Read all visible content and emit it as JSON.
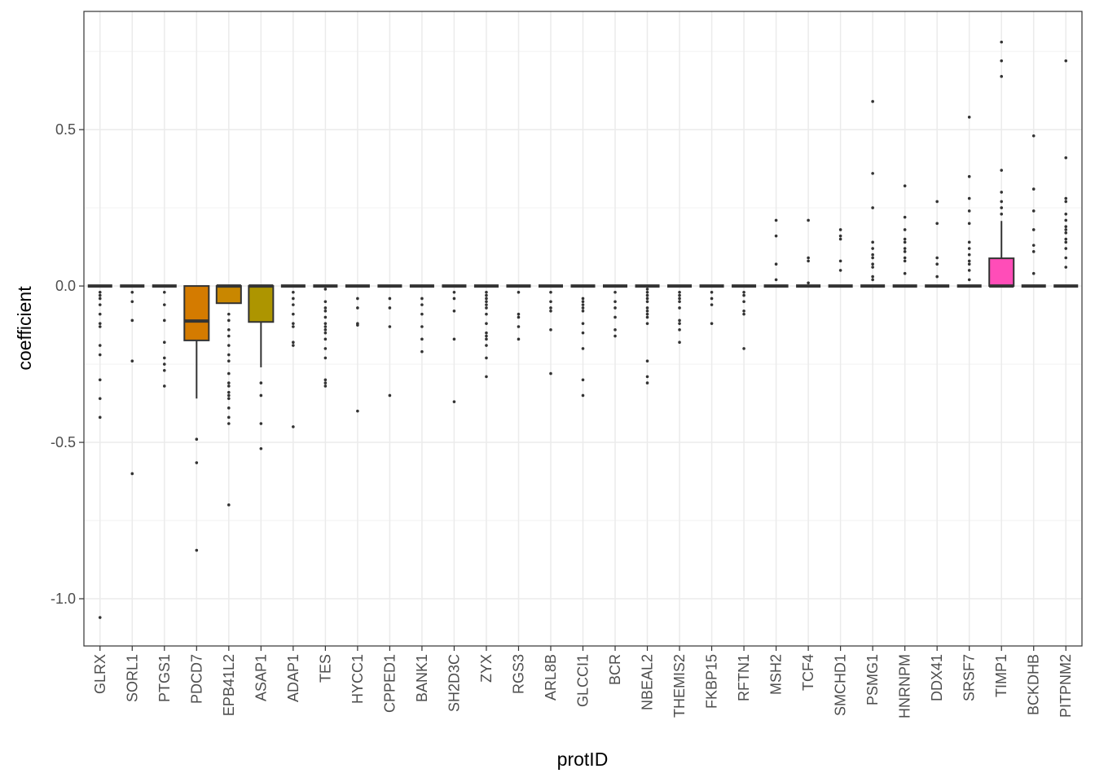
{
  "chart_data": {
    "type": "box",
    "x_label": "protID",
    "y_label": "coefficient",
    "categories": [
      "GLRX",
      "SORL1",
      "PTGS1",
      "PDCD7",
      "EPB41L2",
      "ASAP1",
      "ADAP1",
      "TES",
      "HYCC1",
      "CPPED1",
      "BANK1",
      "SH2D3C",
      "ZYX",
      "RGS3",
      "ARL8B",
      "GLCCI1",
      "BCR",
      "NBEAL2",
      "THEMIS2",
      "FKBP15",
      "RFTN1",
      "MSH2",
      "TCF4",
      "SMCHD1",
      "PSMG1",
      "HNRNPM",
      "DDX41",
      "SRSF7",
      "TIMP1",
      "BCKDHB",
      "PITPNM2"
    ],
    "ylim": [
      -1.151,
      0.878
    ],
    "yticks": [
      {
        "value": -1,
        "label": "-1.0"
      },
      -0.5,
      {
        "value": 0,
        "label": "0.0"
      },
      0.5
    ],
    "grid": true,
    "boxes": [
      {
        "color": "#F8766D",
        "whislo": 0,
        "q1": 0,
        "median": 0,
        "q3": 0,
        "whishi": 0,
        "outliers": [
          -0.02,
          -0.03,
          -0.04,
          -0.06,
          -0.09,
          -0.12,
          -0.13,
          -0.19,
          -0.22,
          -0.3,
          -0.36,
          -0.42,
          -1.06
        ]
      },
      {
        "color": "#F07E4C",
        "whislo": 0,
        "q1": 0,
        "median": 0,
        "q3": 0,
        "whishi": 0,
        "outliers": [
          -0.02,
          -0.05,
          -0.11,
          -0.24,
          -0.6
        ]
      },
      {
        "color": "#E5861E",
        "whislo": 0,
        "q1": 0,
        "median": 0,
        "q3": 0,
        "whishi": 0,
        "outliers": [
          -0.02,
          -0.06,
          -0.11,
          -0.18,
          -0.23,
          -0.25,
          -0.27,
          -0.32
        ]
      },
      {
        "color": "#D47B00",
        "whislo": -0.36,
        "q1": -0.174,
        "median": -0.112,
        "q3": 0,
        "whishi": 0,
        "outliers": [
          -0.49,
          -0.565,
          -0.845
        ]
      },
      {
        "color": "#C98700",
        "whislo": -0.055,
        "q1": -0.055,
        "median": 0,
        "q3": 0,
        "whishi": 0,
        "outliers": [
          -0.09,
          -0.11,
          -0.14,
          -0.16,
          -0.19,
          -0.22,
          -0.24,
          -0.28,
          -0.31,
          -0.32,
          -0.34,
          -0.35,
          -0.36,
          -0.39,
          -0.42,
          -0.44,
          -0.7
        ]
      },
      {
        "color": "#AD9500",
        "whislo": -0.26,
        "q1": -0.115,
        "median": 0,
        "q3": 0,
        "whishi": 0,
        "outliers": [
          -0.31,
          -0.35,
          -0.44,
          -0.52
        ]
      },
      {
        "color": "#A9A100",
        "whislo": 0,
        "q1": 0,
        "median": 0,
        "q3": 0,
        "whishi": 0,
        "outliers": [
          -0.02,
          -0.04,
          -0.06,
          -0.09,
          -0.12,
          -0.13,
          -0.18,
          -0.19,
          -0.45
        ]
      },
      {
        "color": "#95A600",
        "whislo": 0,
        "q1": 0,
        "median": 0,
        "q3": 0,
        "whishi": 0,
        "outliers": [
          -0.01,
          -0.05,
          -0.07,
          -0.08,
          -0.1,
          -0.12,
          -0.13,
          -0.14,
          -0.15,
          -0.17,
          -0.2,
          -0.23,
          -0.3,
          -0.31,
          -0.32
        ]
      },
      {
        "color": "#7DAB00",
        "whislo": 0,
        "q1": 0,
        "median": 0,
        "q3": 0,
        "whishi": 0,
        "outliers": [
          -0.04,
          -0.07,
          -0.12,
          -0.125,
          -0.4
        ]
      },
      {
        "color": "#5EB000",
        "whislo": 0,
        "q1": 0,
        "median": 0,
        "q3": 0,
        "whishi": 0,
        "outliers": [
          -0.04,
          -0.07,
          -0.13,
          -0.35
        ]
      },
      {
        "color": "#24B400",
        "whislo": 0,
        "q1": 0,
        "median": 0,
        "q3": 0,
        "whishi": 0,
        "outliers": [
          -0.04,
          -0.06,
          -0.09,
          -0.13,
          -0.17,
          -0.21
        ]
      },
      {
        "color": "#00B84B",
        "whislo": 0,
        "q1": 0,
        "median": 0,
        "q3": 0,
        "whishi": 0,
        "outliers": [
          -0.02,
          -0.04,
          -0.08,
          -0.17,
          -0.37
        ]
      },
      {
        "color": "#00BB6A",
        "whislo": 0,
        "q1": 0,
        "median": 0,
        "q3": 0,
        "whishi": 0,
        "outliers": [
          -0.02,
          -0.03,
          -0.04,
          -0.05,
          -0.06,
          -0.07,
          -0.09,
          -0.12,
          -0.15,
          -0.16,
          -0.17,
          -0.19,
          -0.23,
          -0.29
        ]
      },
      {
        "color": "#00BE82",
        "whislo": 0,
        "q1": 0,
        "median": 0,
        "q3": 0,
        "whishi": 0,
        "outliers": [
          -0.02,
          -0.09,
          -0.1,
          -0.13,
          -0.17
        ]
      },
      {
        "color": "#00C097",
        "whislo": 0,
        "q1": 0,
        "median": 0,
        "q3": 0,
        "whishi": 0,
        "outliers": [
          -0.02,
          -0.05,
          -0.07,
          -0.08,
          -0.14,
          -0.28
        ]
      },
      {
        "color": "#00C1AA",
        "whislo": 0,
        "q1": 0,
        "median": 0,
        "q3": 0,
        "whishi": 0,
        "outliers": [
          -0.04,
          -0.05,
          -0.06,
          -0.07,
          -0.08,
          -0.12,
          -0.15,
          -0.2,
          -0.3,
          -0.35
        ]
      },
      {
        "color": "#00C0BC",
        "whislo": 0,
        "q1": 0,
        "median": 0,
        "q3": 0,
        "whishi": 0,
        "outliers": [
          -0.02,
          -0.05,
          -0.07,
          -0.1,
          -0.14,
          -0.16
        ]
      },
      {
        "color": "#00BECD",
        "whislo": 0,
        "q1": 0,
        "median": 0,
        "q3": 0,
        "whishi": 0,
        "outliers": [
          -0.01,
          -0.02,
          -0.03,
          -0.04,
          -0.05,
          -0.07,
          -0.08,
          -0.09,
          -0.1,
          -0.12,
          -0.24,
          -0.29,
          -0.31
        ]
      },
      {
        "color": "#00BADC",
        "whislo": 0,
        "q1": 0,
        "median": 0,
        "q3": 0,
        "whishi": 0,
        "outliers": [
          -0.02,
          -0.03,
          -0.04,
          -0.05,
          -0.07,
          -0.11,
          -0.12,
          -0.14,
          -0.18
        ]
      },
      {
        "color": "#00B5EA",
        "whislo": 0,
        "q1": 0,
        "median": 0,
        "q3": 0,
        "whishi": 0,
        "outliers": [
          -0.02,
          -0.04,
          -0.06,
          -0.12
        ]
      },
      {
        "color": "#00AEF6",
        "whislo": 0,
        "q1": 0,
        "median": 0,
        "q3": 0,
        "whishi": 0,
        "outliers": [
          -0.02,
          -0.03,
          -0.05,
          -0.08,
          -0.09,
          -0.2
        ]
      },
      {
        "color": "#00A6FF",
        "whislo": 0,
        "q1": 0,
        "median": 0,
        "q3": 0,
        "whishi": 0,
        "outliers": [
          0.21,
          0.16,
          0.07,
          0.02
        ]
      },
      {
        "color": "#619CFF",
        "whislo": 0,
        "q1": 0,
        "median": 0,
        "q3": 0,
        "whishi": 0,
        "outliers": [
          0.21,
          0.09,
          0.08,
          0.01
        ]
      },
      {
        "color": "#8E92FF",
        "whislo": 0,
        "q1": 0,
        "median": 0,
        "q3": 0,
        "whishi": 0,
        "outliers": [
          0.18,
          0.16,
          0.15,
          0.08,
          0.05
        ]
      },
      {
        "color": "#AF88FF",
        "whislo": 0,
        "q1": 0,
        "median": 0,
        "q3": 0,
        "whishi": 0,
        "outliers": [
          0.59,
          0.36,
          0.25,
          0.14,
          0.12,
          0.1,
          0.09,
          0.07,
          0.06,
          0.03,
          0.02
        ]
      },
      {
        "color": "#C97FFF",
        "whislo": 0,
        "q1": 0,
        "median": 0,
        "q3": 0,
        "whishi": 0,
        "outliers": [
          0.32,
          0.22,
          0.18,
          0.15,
          0.14,
          0.12,
          0.11,
          0.09,
          0.08,
          0.04
        ]
      },
      {
        "color": "#DE76F9",
        "whislo": 0,
        "q1": 0,
        "median": 0,
        "q3": 0,
        "whishi": 0,
        "outliers": [
          0.27,
          0.2,
          0.09,
          0.07,
          0.03
        ]
      },
      {
        "color": "#EE6DEB",
        "whislo": 0,
        "q1": 0,
        "median": 0,
        "q3": 0,
        "whishi": 0,
        "outliers": [
          0.54,
          0.35,
          0.28,
          0.24,
          0.2,
          0.14,
          0.12,
          0.1,
          0.08,
          0.07,
          0.05,
          0.02
        ]
      },
      {
        "color": "#FF4DB8",
        "whislo": 0,
        "q1": 0,
        "median": 0,
        "q3": 0.0885,
        "whishi": 0.208,
        "outliers": [
          0.23,
          0.25,
          0.27,
          0.3,
          0.37,
          0.67,
          0.72,
          0.78
        ]
      },
      {
        "color": "#FF62C7",
        "whislo": 0,
        "q1": 0,
        "median": 0,
        "q3": 0,
        "whishi": 0,
        "outliers": [
          0.48,
          0.31,
          0.24,
          0.18,
          0.13,
          0.11,
          0.04
        ]
      },
      {
        "color": "#FF63B2",
        "whislo": 0,
        "q1": 0,
        "median": 0,
        "q3": 0,
        "whishi": 0,
        "outliers": [
          0.72,
          0.41,
          0.28,
          0.27,
          0.23,
          0.21,
          0.19,
          0.18,
          0.17,
          0.15,
          0.14,
          0.12,
          0.09,
          0.06
        ]
      }
    ]
  }
}
